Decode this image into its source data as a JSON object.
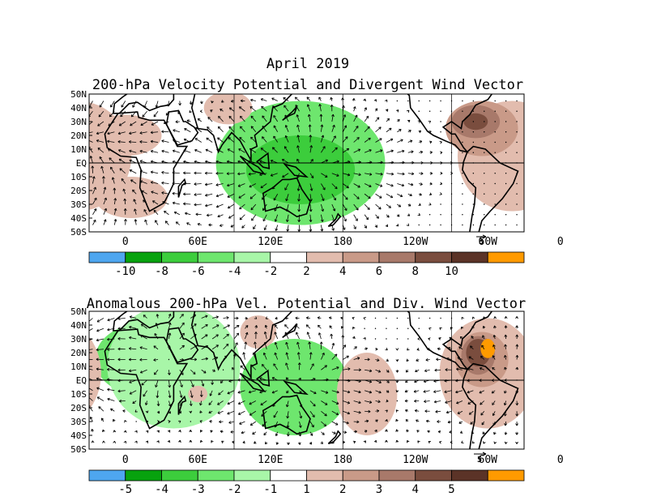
{
  "figure": {
    "title": "April 2019"
  },
  "colors": {
    "blue": "#4ea6ef",
    "green_dark": "#07a20e",
    "green_mid": "#3ccd3c",
    "green": "#6ee66e",
    "green_light": "#a8f6a8",
    "white": "#ffffff",
    "brown_light": "#e2bcae",
    "brown": "#c99a88",
    "brown_mid": "#a8796a",
    "brown_dark": "#7a4d3e",
    "brown_darkest": "#5b3327",
    "orange": "#ff9a00"
  },
  "chart_data": [
    {
      "type": "heatmap",
      "title": "200-hPa Velocity Potential and Divergent Wind Vector",
      "lat_labels": [
        "50N",
        "40N",
        "30N",
        "20N",
        "10N",
        "EQ",
        "10S",
        "20S",
        "30S",
        "40S",
        "50S"
      ],
      "lon_labels": [
        "0",
        "60E",
        "120E",
        "180",
        "120W",
        "60W",
        "0"
      ],
      "lat_range": [
        -50,
        50
      ],
      "lon_range": [
        -30,
        330
      ],
      "reference_vector": "3",
      "colorbar": {
        "labels": [
          "-10",
          "-8",
          "-6",
          "-4",
          "-2",
          "2",
          "4",
          "6",
          "8",
          "10"
        ],
        "colors": [
          "blue",
          "green_dark",
          "green_mid",
          "green",
          "green_light",
          "white",
          "brown_light",
          "brown",
          "brown_mid",
          "brown_dark",
          "brown_darkest",
          "orange"
        ]
      },
      "features": [
        {
          "kind": "blue",
          "lon": 150,
          "lat": -3,
          "rlon": 22,
          "rlat": 14
        },
        {
          "kind": "green",
          "lon": 145,
          "lat": 0,
          "rlon": 70,
          "rlat": 45
        },
        {
          "kind": "green_mid",
          "lon": 145,
          "lat": -5,
          "rlon": 45,
          "rlat": 25
        },
        {
          "kind": "brown_light",
          "lon": -40,
          "lat": 5,
          "rlon": 45,
          "rlat": 40
        },
        {
          "kind": "brown_light",
          "lon": 0,
          "lat": 20,
          "rlon": 30,
          "rlat": 15
        },
        {
          "kind": "brown_light",
          "lon": 5,
          "lat": -25,
          "rlon": 30,
          "rlat": 15
        },
        {
          "kind": "brown_light",
          "lon": 85,
          "lat": 40,
          "rlon": 20,
          "rlat": 12
        },
        {
          "kind": "brown",
          "lon": -65,
          "lat": 25,
          "rlon": 30,
          "rlat": 20
        },
        {
          "kind": "brown_mid",
          "lon": -70,
          "lat": 30,
          "rlon": 20,
          "rlat": 12
        },
        {
          "kind": "brown_dark",
          "lon": -70,
          "lat": 30,
          "rlon": 10,
          "rlat": 6
        }
      ]
    },
    {
      "type": "heatmap",
      "title": "Anomalous 200-hPa Vel. Potential and Div. Wind Vector",
      "lat_labels": [
        "50N",
        "40N",
        "30N",
        "20N",
        "10N",
        "EQ",
        "10S",
        "20S",
        "30S",
        "40S",
        "50S"
      ],
      "lon_labels": [
        "0",
        "60E",
        "120E",
        "180",
        "120W",
        "60W",
        "0"
      ],
      "lat_range": [
        -50,
        50
      ],
      "lon_range": [
        -30,
        330
      ],
      "reference_vector": "5",
      "colorbar": {
        "labels": [
          "-5",
          "-4",
          "-3",
          "-2",
          "-1",
          "1",
          "2",
          "3",
          "4",
          "5"
        ],
        "colors": [
          "blue",
          "green_dark",
          "green_mid",
          "green",
          "green_light",
          "white",
          "brown_light",
          "brown",
          "brown_mid",
          "brown_dark",
          "brown_darkest",
          "orange"
        ]
      },
      "features": [
        {
          "kind": "blue",
          "lon": 150,
          "lat": 0,
          "rlon": 15,
          "rlat": 10
        },
        {
          "kind": "green",
          "lon": 140,
          "lat": -5,
          "rlon": 45,
          "rlat": 35
        },
        {
          "kind": "green",
          "lon": 10,
          "lat": 15,
          "rlon": 35,
          "rlat": 25
        },
        {
          "kind": "green_light",
          "lon": 40,
          "lat": 10,
          "rlon": 55,
          "rlat": 45
        },
        {
          "kind": "green",
          "lon": 320,
          "lat": 0,
          "rlon": 15,
          "rlat": 25
        },
        {
          "kind": "brown_light",
          "lon": -60,
          "lat": 5,
          "rlon": 40,
          "rlat": 40
        },
        {
          "kind": "brown_light",
          "lon": 200,
          "lat": -10,
          "rlon": 25,
          "rlat": 30
        },
        {
          "kind": "brown_light",
          "lon": 110,
          "lat": 35,
          "rlon": 15,
          "rlat": 12
        },
        {
          "kind": "brown_light",
          "lon": 60,
          "lat": -10,
          "rlon": 8,
          "rlat": 6
        },
        {
          "kind": "brown",
          "lon": -65,
          "lat": 15,
          "rlon": 22,
          "rlat": 20
        },
        {
          "kind": "brown_mid",
          "lon": -68,
          "lat": 18,
          "rlon": 14,
          "rlat": 14
        },
        {
          "kind": "brown_dark",
          "lon": -68,
          "lat": 20,
          "rlon": 10,
          "rlat": 10
        },
        {
          "kind": "orange",
          "lon": -60,
          "lat": 23,
          "rlon": 6,
          "rlat": 7
        }
      ]
    }
  ]
}
